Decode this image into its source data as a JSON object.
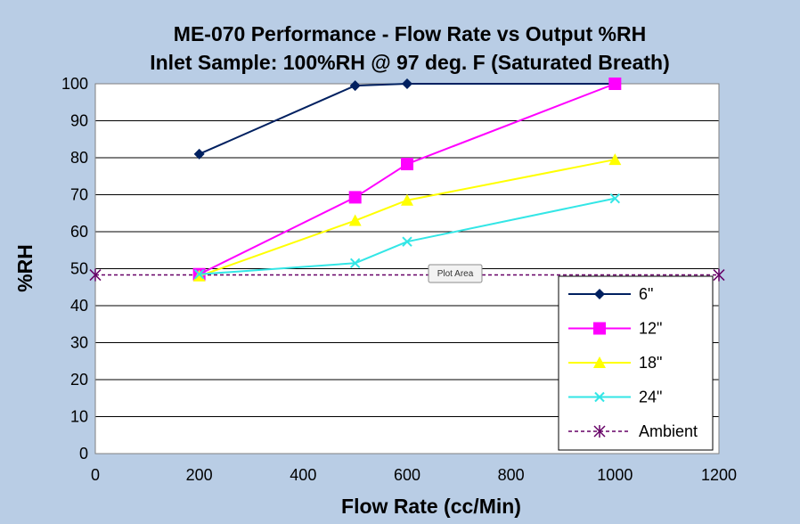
{
  "tooltip_label": "Plot Area",
  "chart_data": {
    "type": "line",
    "title": "ME-070 Performance - Flow Rate vs Output %RH",
    "subtitle": "Inlet Sample: 100%RH @ 97 deg. F (Saturated Breath)",
    "xlabel": "Flow Rate (cc/Min)",
    "ylabel": "%RH",
    "xlim": [
      0,
      1200
    ],
    "ylim": [
      0,
      100
    ],
    "x_ticks": [
      "0",
      "200",
      "400",
      "600",
      "800",
      "1000",
      "1200"
    ],
    "y_ticks": [
      "0",
      "10",
      "20",
      "30",
      "40",
      "50",
      "60",
      "70",
      "80",
      "90",
      "100"
    ],
    "grid": "horizontal",
    "legend_position": "bottom-right",
    "series": [
      {
        "name": "6\"",
        "color": "#002060",
        "marker": "diamond",
        "dash": false,
        "x": [
          200,
          500,
          600,
          1000
        ],
        "y": [
          81,
          99.5,
          100,
          100
        ]
      },
      {
        "name": "12\"",
        "color": "#ff00ff",
        "marker": "square",
        "dash": false,
        "x": [
          200,
          500,
          600,
          1000
        ],
        "y": [
          48.5,
          69.3,
          78.3,
          100
        ]
      },
      {
        "name": "18\"",
        "color": "#ffff00",
        "marker": "triangle",
        "dash": false,
        "x": [
          200,
          500,
          600,
          1000
        ],
        "y": [
          48,
          63,
          68.5,
          79.5
        ]
      },
      {
        "name": "24\"",
        "color": "#33e6e6",
        "marker": "x",
        "dash": false,
        "x": [
          200,
          500,
          600,
          1000
        ],
        "y": [
          48.5,
          51.5,
          57.3,
          69
        ]
      },
      {
        "name": "Ambient",
        "color": "#660066",
        "marker": "star",
        "dash": true,
        "x": [
          0,
          1200
        ],
        "y": [
          48.3,
          48.3
        ]
      }
    ]
  }
}
